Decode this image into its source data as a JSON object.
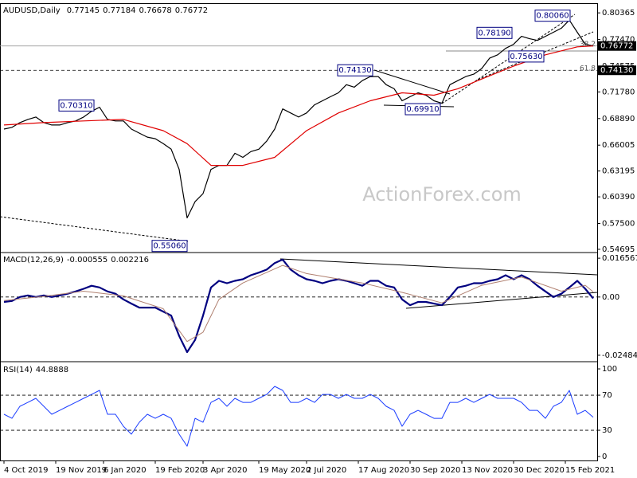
{
  "chart_data": [
    {
      "type": "line",
      "title": "AUDUSD,Daily",
      "readings": [
        0.77145,
        0.77184,
        0.76678,
        0.76772
      ],
      "watermark": "ActionForex.com",
      "xlim": [
        -0.5,
        74.5
      ],
      "ylim": [
        0.5443,
        0.8133
      ],
      "yticks": [
        {
          "value": 0.80365,
          "label": "0.80365"
        },
        {
          "value": 0.7747,
          "label": "0.77470"
        },
        {
          "value": 0.74575,
          "label": "0.74575"
        },
        {
          "value": 0.7178,
          "label": "0.71780"
        },
        {
          "value": 0.6889,
          "label": "0.68890"
        },
        {
          "value": 0.66005,
          "label": "0.66005"
        },
        {
          "value": 0.63195,
          "label": "0.63195"
        },
        {
          "value": 0.6039,
          "label": "0.60390"
        },
        {
          "value": 0.575,
          "label": "0.57500"
        },
        {
          "value": 0.54695,
          "label": "0.54695"
        }
      ],
      "series": [
        {
          "name": "AUDUSD",
          "color": "#000000",
          "line_width": 1.2,
          "values": [
            0.6775,
            0.6793,
            0.6845,
            0.688,
            0.6906,
            0.6845,
            0.6819,
            0.6819,
            0.6845,
            0.6863,
            0.6906,
            0.6968,
            0.7012,
            0.688,
            0.6863,
            0.6863,
            0.6775,
            0.6731,
            0.6688,
            0.667,
            0.6617,
            0.6556,
            0.6337,
            0.5811,
            0.5987,
            0.6074,
            0.6337,
            0.6381,
            0.6381,
            0.6512,
            0.6468,
            0.653,
            0.6556,
            0.6644,
            0.6775,
            0.6994,
            0.695,
            0.6906,
            0.695,
            0.7038,
            0.7082,
            0.7126,
            0.7169,
            0.7257,
            0.723,
            0.7301,
            0.7345,
            0.7345,
            0.7257,
            0.7213,
            0.7082,
            0.7126,
            0.7169,
            0.7143,
            0.7082,
            0.7055,
            0.7257,
            0.7301,
            0.7345,
            0.7371,
            0.7432,
            0.7546,
            0.7581,
            0.7651,
            0.7695,
            0.7782,
            0.7756,
            0.7738,
            0.7782,
            0.7826,
            0.787,
            0.7958,
            0.7826,
            0.7695,
            0.7677
          ]
        },
        {
          "name": "MA",
          "color": "#e00000",
          "line_width": 1.2,
          "x": [
            0,
            5,
            10,
            15,
            20,
            23,
            26,
            30,
            34,
            38,
            42,
            46,
            50,
            54,
            57,
            60,
            64,
            68,
            72,
            74
          ],
          "values": [
            0.6819,
            0.6845,
            0.6863,
            0.688,
            0.6758,
            0.6617,
            0.6381,
            0.6381,
            0.6468,
            0.6758,
            0.695,
            0.7082,
            0.7169,
            0.7143,
            0.7213,
            0.7318,
            0.7458,
            0.7581,
            0.7668,
            0.7677
          ]
        }
      ],
      "annotations": [
        {
          "label": "0.70310",
          "value": 0.7031,
          "x": 11.5
        },
        {
          "label": "0.55060",
          "value": 0.5506,
          "x": 23.2
        },
        {
          "label": "0.74130",
          "value": 0.7413,
          "x": 46.5
        },
        {
          "label": "0.69910",
          "value": 0.6991,
          "x": 55
        },
        {
          "label": "0.75630",
          "value": 0.7563,
          "x": 68
        },
        {
          "label": "0.78190",
          "value": 0.7819,
          "x": 64
        },
        {
          "label": "0.80060",
          "value": 0.8006,
          "x": 71.3
        }
      ],
      "levels": [
        {
          "value": 0.7413,
          "label": "0.74130",
          "fib_label": "61.8",
          "dashed": true
        },
        {
          "value": 0.76772,
          "label": "0.76772",
          "fib_label": "38.2",
          "dashed": false
        }
      ]
    },
    {
      "type": "line",
      "title": "MACD(12,26,9)",
      "readings": [
        -0.000555,
        0.002216
      ],
      "xlim": [
        -0.5,
        74.5
      ],
      "ylim": [
        -0.02691,
        0.01864
      ],
      "yticks": [
        0.016567,
        {
          "value": 0,
          "label": "0.00"
        },
        -0.02484
      ],
      "levels": [
        {
          "value": 0,
          "dashed": true
        }
      ],
      "series": [
        {
          "name": "MACD",
          "color": "#000080",
          "line_width": 2.2,
          "values": [
            -0.0021,
            -0.0017,
            0,
            0.0007,
            0,
            0.0007,
            0,
            0.0007,
            0.0014,
            0.0024,
            0.0035,
            0.0048,
            0.0041,
            0.0024,
            0.0014,
            -0.001,
            -0.0028,
            -0.0045,
            -0.0045,
            -0.0045,
            -0.0062,
            -0.0079,
            -0.0166,
            -0.0235,
            -0.0183,
            -0.0079,
            0.0041,
            0.0069,
            0.0059,
            0.0069,
            0.0076,
            0.0093,
            0.0104,
            0.0117,
            0.0145,
            0.016,
            0.0117,
            0.0093,
            0.0076,
            0.0069,
            0.0059,
            0.0069,
            0.0076,
            0.0069,
            0.0059,
            0.0048,
            0.0069,
            0.0069,
            0.0048,
            0.0041,
            -0.001,
            -0.0035,
            -0.0021,
            -0.0021,
            -0.0028,
            -0.0035,
            0,
            0.0041,
            0.0048,
            0.0059,
            0.0059,
            0.0069,
            0.0076,
            0.0093,
            0.0076,
            0.0093,
            0.0076,
            0.0048,
            0.0024,
            0,
            0.0014,
            0.0041,
            0.0069,
            0.0035,
            -0.0006
          ]
        },
        {
          "name": "Signal",
          "color": "#b08070",
          "line_width": 1,
          "x": [
            0,
            5,
            10,
            15,
            20,
            23,
            25,
            27,
            30,
            35,
            38,
            45,
            50,
            55,
            60,
            65,
            70,
            73,
            74
          ],
          "values": [
            -0.0015,
            0.0003,
            0.0025,
            0.0005,
            -0.005,
            -0.019,
            -0.015,
            -0.001,
            0.006,
            0.0135,
            0.01,
            0.006,
            0.002,
            -0.0025,
            0.005,
            0.0085,
            0.0025,
            0.005,
            0.0022
          ]
        }
      ]
    },
    {
      "type": "line",
      "title": "RSI(14)",
      "readings": [
        44.8888
      ],
      "xlim": [
        -0.5,
        74.5
      ],
      "ylim": [
        -4.5,
        106.4
      ],
      "yticks": [
        100,
        70,
        30,
        0
      ],
      "levels": [
        {
          "value": 70,
          "dashed": true
        },
        {
          "value": 30,
          "dashed": true
        }
      ],
      "xticks": [
        {
          "value": 0,
          "label": "4 Oct 2019"
        },
        {
          "value": 6.5,
          "label": "19 Nov 2019"
        },
        {
          "value": 12.5,
          "label": "6 Jan 2020"
        },
        {
          "value": 19,
          "label": "19 Feb 2020"
        },
        {
          "value": 25,
          "label": "3 Apr 2020"
        },
        {
          "value": 32,
          "label": "19 May 2020"
        },
        {
          "value": 38,
          "label": "2 Jul 2020"
        },
        {
          "value": 44.5,
          "label": "17 Aug 2020"
        },
        {
          "value": 51,
          "label": "30 Sep 2020"
        },
        {
          "value": 57.5,
          "label": "13 Nov 2020"
        },
        {
          "value": 64,
          "label": "30 Dec 2020"
        },
        {
          "value": 70.5,
          "label": "15 Feb 2021"
        }
      ],
      "series": [
        {
          "name": "RSI",
          "color": "#1a3cff",
          "line_width": 1,
          "values": [
            48.2,
            43.6,
            57.3,
            61.8,
            66.4,
            57.3,
            48.2,
            52.7,
            57.3,
            61.8,
            66.4,
            70.9,
            75.5,
            48.2,
            48.2,
            34.5,
            25.5,
            39.1,
            48.2,
            43.6,
            48.2,
            43.6,
            25.5,
            11.8,
            43.6,
            39.1,
            61.8,
            66.4,
            57.3,
            66.4,
            61.8,
            61.8,
            66.4,
            70.9,
            80.0,
            75.5,
            61.8,
            61.8,
            66.4,
            61.8,
            70.9,
            70.9,
            66.4,
            70.9,
            66.4,
            66.4,
            70.9,
            66.4,
            57.3,
            52.7,
            34.5,
            48.2,
            52.7,
            48.2,
            43.6,
            43.6,
            61.8,
            61.8,
            66.4,
            61.8,
            66.4,
            70.9,
            66.4,
            66.4,
            66.4,
            61.8,
            52.7,
            52.7,
            43.6,
            57.3,
            61.8,
            75.5,
            48.2,
            52.7,
            44.9
          ]
        }
      ]
    }
  ]
}
